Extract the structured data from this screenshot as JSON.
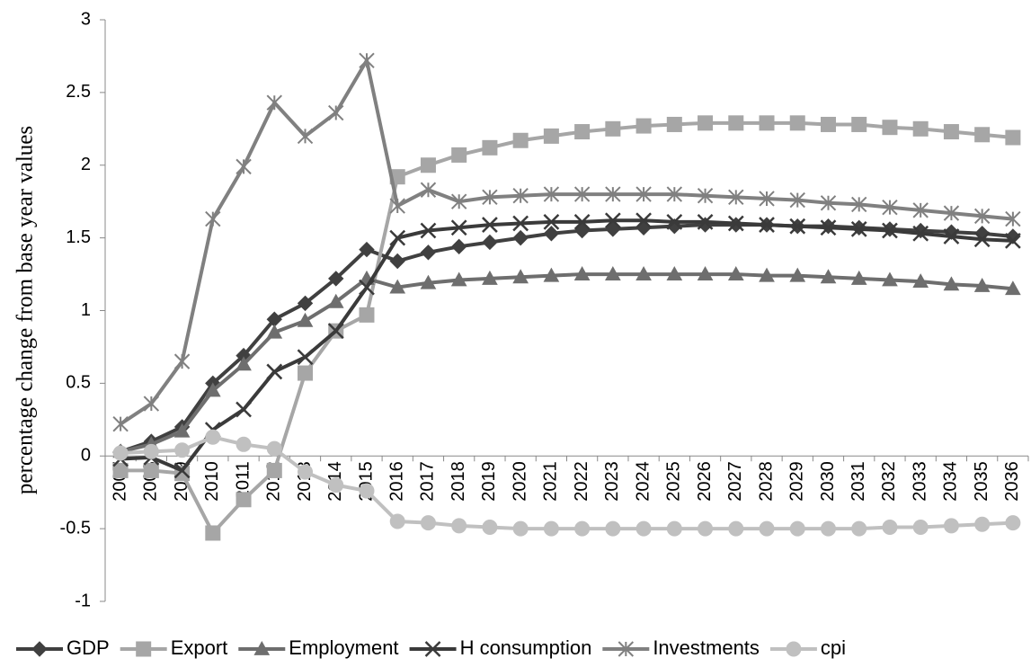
{
  "chart_data": {
    "type": "line",
    "y_label": "percentage change from base year values",
    "categories": [
      "2007",
      "2008",
      "2009",
      "2010",
      "2011",
      "2012",
      "2013",
      "2014",
      "2015",
      "2016",
      "2017",
      "2018",
      "2019",
      "2020",
      "2021",
      "2022",
      "2023",
      "2024",
      "2025",
      "2026",
      "2027",
      "2028",
      "2029",
      "2030",
      "2031",
      "2032",
      "2033",
      "2034",
      "2035",
      "2036"
    ],
    "ylim": [
      -1,
      3
    ],
    "yticks": [
      -1,
      -0.5,
      0,
      0.5,
      1,
      1.5,
      2,
      2.5,
      3
    ],
    "grid": false,
    "legend": "bottom",
    "series": [
      {
        "name": "GDP",
        "color": "#404040",
        "marker": "diamond",
        "values": [
          0.03,
          0.1,
          0.2,
          0.5,
          0.69,
          0.94,
          1.05,
          1.22,
          1.42,
          1.34,
          1.4,
          1.44,
          1.47,
          1.5,
          1.53,
          1.55,
          1.56,
          1.57,
          1.58,
          1.59,
          1.59,
          1.59,
          1.58,
          1.58,
          1.57,
          1.56,
          1.55,
          1.54,
          1.53,
          1.51
        ]
      },
      {
        "name": "Export",
        "color": "#a6a6a6",
        "marker": "square",
        "values": [
          -0.1,
          -0.1,
          -0.12,
          -0.53,
          -0.3,
          -0.1,
          0.57,
          0.86,
          0.97,
          1.92,
          2.0,
          2.07,
          2.12,
          2.17,
          2.2,
          2.23,
          2.25,
          2.27,
          2.28,
          2.29,
          2.29,
          2.29,
          2.29,
          2.28,
          2.28,
          2.26,
          2.25,
          2.23,
          2.21,
          2.19
        ]
      },
      {
        "name": "Employment",
        "color": "#6e6e6e",
        "marker": "triangle",
        "values": [
          0.03,
          0.08,
          0.17,
          0.45,
          0.63,
          0.85,
          0.93,
          1.06,
          1.22,
          1.16,
          1.19,
          1.21,
          1.22,
          1.23,
          1.24,
          1.25,
          1.25,
          1.25,
          1.25,
          1.25,
          1.25,
          1.24,
          1.24,
          1.23,
          1.22,
          1.21,
          1.2,
          1.18,
          1.17,
          1.15
        ]
      },
      {
        "name": "H consumption",
        "color": "#3a3a3a",
        "marker": "x",
        "values": [
          -0.02,
          -0.01,
          -0.1,
          0.18,
          0.32,
          0.58,
          0.68,
          0.86,
          1.16,
          1.5,
          1.55,
          1.57,
          1.59,
          1.6,
          1.61,
          1.61,
          1.62,
          1.62,
          1.61,
          1.61,
          1.6,
          1.59,
          1.58,
          1.57,
          1.56,
          1.55,
          1.53,
          1.51,
          1.49,
          1.48
        ]
      },
      {
        "name": "Investments",
        "color": "#808080",
        "marker": "asterisk",
        "values": [
          0.22,
          0.36,
          0.65,
          1.63,
          1.99,
          2.43,
          2.2,
          2.36,
          2.72,
          1.72,
          1.83,
          1.75,
          1.78,
          1.79,
          1.8,
          1.8,
          1.8,
          1.8,
          1.8,
          1.79,
          1.78,
          1.77,
          1.76,
          1.74,
          1.73,
          1.71,
          1.69,
          1.67,
          1.65,
          1.63
        ]
      },
      {
        "name": "cpi",
        "color": "#c0c0c0",
        "marker": "circle",
        "values": [
          0.02,
          0.03,
          0.04,
          0.13,
          0.08,
          0.05,
          -0.11,
          -0.2,
          -0.24,
          -0.45,
          -0.46,
          -0.48,
          -0.49,
          -0.5,
          -0.5,
          -0.5,
          -0.5,
          -0.5,
          -0.5,
          -0.5,
          -0.5,
          -0.5,
          -0.5,
          -0.5,
          -0.5,
          -0.49,
          -0.49,
          -0.48,
          -0.47,
          -0.46
        ]
      }
    ]
  }
}
